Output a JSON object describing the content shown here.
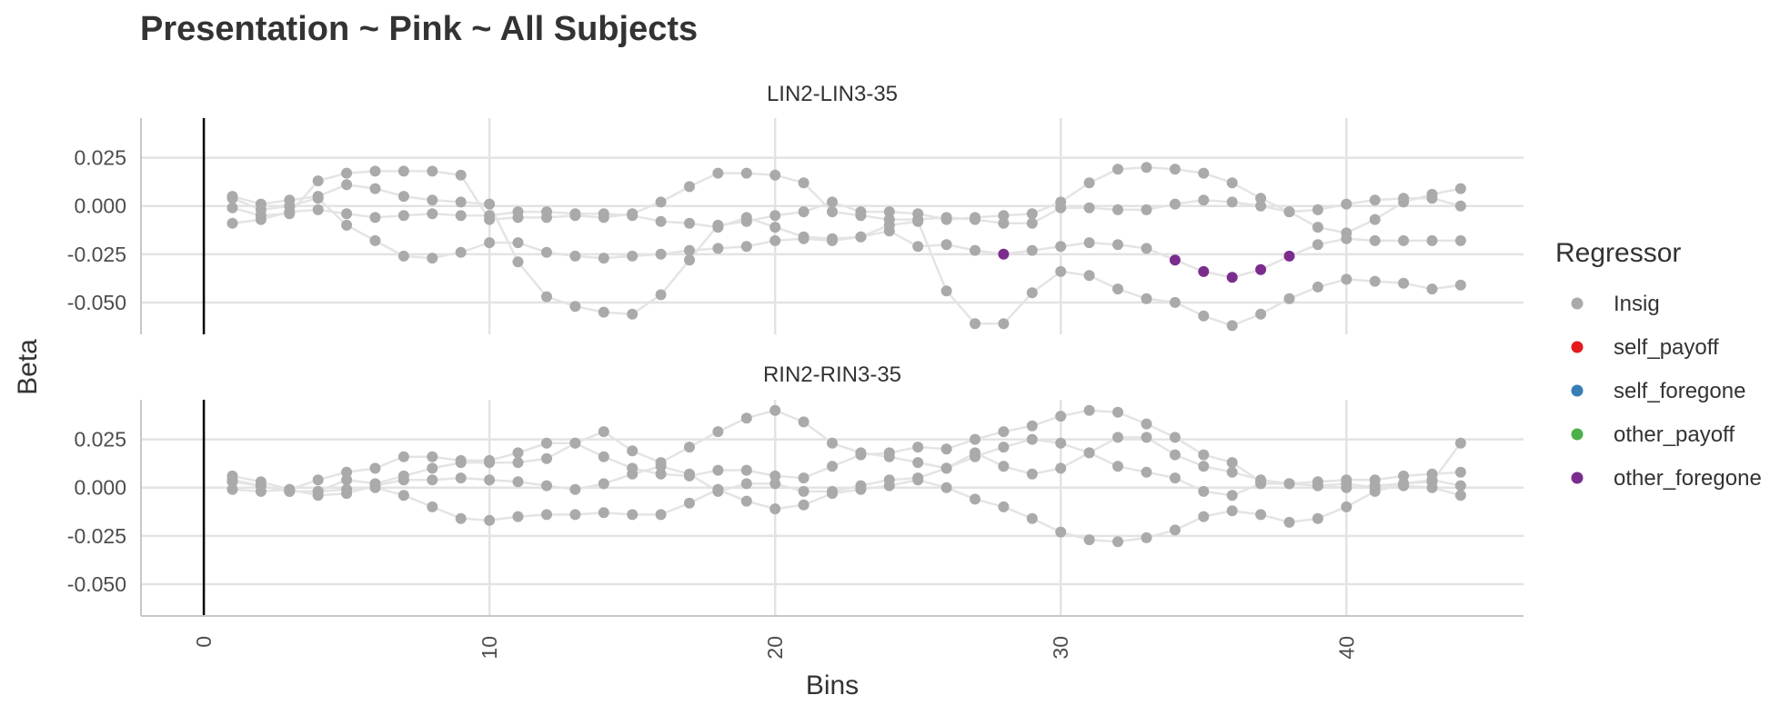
{
  "title": "Presentation ~ Pink ~ All Subjects",
  "chart_data": {
    "type": "scatter",
    "xlabel": "Bins",
    "ylabel": "Beta",
    "xlim": [
      -2.2,
      46.2
    ],
    "ylim": [
      -0.0665,
      0.0455
    ],
    "x_ticks": [
      0,
      10,
      20,
      30,
      40
    ],
    "x_tick_labels": [
      "0",
      "10",
      "20",
      "30",
      "40"
    ],
    "y_ticks": [
      0.025,
      0,
      -0.025,
      -0.05
    ],
    "y_tick_labels": [
      "0.025",
      "0.000",
      "-0.025",
      "-0.050"
    ],
    "vline_x": 0,
    "grid": true,
    "legend": {
      "title": "Regressor",
      "position": "right",
      "entries": [
        {
          "name": "Insig",
          "color": "#AAAAAA"
        },
        {
          "name": "self_payoff",
          "color": "#E41A1C"
        },
        {
          "name": "self_foregone",
          "color": "#377EB8"
        },
        {
          "name": "other_payoff",
          "color": "#4DAF4A"
        },
        {
          "name": "other_foregone",
          "color": "#7B2D8E"
        }
      ]
    },
    "panels": [
      {
        "strip": "LIN2-LIN3-35",
        "series": [
          {
            "values": [
              0.005,
              0.001,
              0.003,
              0.005,
              0.011,
              0.009,
              0.005,
              0.003,
              0.002,
              0.001,
              -0.029,
              -0.047,
              -0.052,
              -0.055,
              -0.056,
              -0.046,
              -0.028,
              -0.01,
              -0.008,
              -0.005,
              -0.003,
              0.002,
              -0.003,
              -0.003,
              -0.004,
              -0.007,
              -0.006,
              -0.005,
              -0.004,
              0.002,
              0.012,
              0.019,
              0.02,
              0.019,
              0.017,
              0.012,
              0.004,
              -0.003,
              -0.011,
              -0.014,
              -0.007,
              0.002,
              0.006,
              0.009
            ],
            "colors": {}
          },
          {
            "values": [
              -0.001,
              -0.005,
              -0.004,
              0.013,
              0.017,
              0.018,
              0.018,
              0.018,
              0.016,
              -0.007,
              -0.006,
              -0.006,
              -0.005,
              -0.006,
              -0.004,
              0.002,
              0.01,
              0.017,
              0.017,
              0.016,
              0.012,
              -0.003,
              -0.005,
              -0.007,
              -0.007,
              -0.006,
              -0.007,
              -0.009,
              -0.009,
              -0.001,
              -0.001,
              -0.002,
              -0.002,
              0.001,
              0.003,
              0.002,
              0.0,
              -0.003,
              -0.002,
              0.001,
              0.003,
              0.004,
              0.004,
              0.0
            ],
            "colors": {}
          },
          {
            "values": [
              -0.009,
              -0.007,
              -0.003,
              -0.002,
              -0.004,
              -0.006,
              -0.005,
              -0.004,
              -0.005,
              -0.005,
              -0.003,
              -0.003,
              -0.004,
              -0.004,
              -0.005,
              -0.008,
              -0.009,
              -0.011,
              -0.006,
              -0.011,
              -0.016,
              -0.017,
              -0.016,
              -0.013,
              -0.021,
              -0.02,
              -0.023,
              -0.025,
              -0.023,
              -0.021,
              -0.019,
              -0.02,
              -0.022,
              -0.028,
              -0.034,
              -0.037,
              -0.033,
              -0.026,
              -0.02,
              -0.017,
              -0.018,
              -0.018,
              -0.018,
              -0.018
            ],
            "colors": {
              "28": "#7B2D8E",
              "34": "#7B2D8E",
              "35": "#7B2D8E",
              "36": "#7B2D8E",
              "37": "#7B2D8E",
              "38": "#7B2D8E"
            }
          },
          {
            "values": [
              0.004,
              -0.002,
              0.0,
              0.004,
              -0.01,
              -0.018,
              -0.026,
              -0.027,
              -0.024,
              -0.019,
              -0.019,
              -0.024,
              -0.026,
              -0.027,
              -0.026,
              -0.025,
              -0.023,
              -0.022,
              -0.021,
              -0.018,
              -0.017,
              -0.018,
              -0.016,
              -0.01,
              -0.008,
              -0.044,
              -0.061,
              -0.061,
              -0.045,
              -0.034,
              -0.036,
              -0.043,
              -0.048,
              -0.05,
              -0.057,
              -0.062,
              -0.056,
              -0.048,
              -0.042,
              -0.038,
              -0.039,
              -0.04,
              -0.043,
              -0.041
            ],
            "colors": {}
          }
        ]
      },
      {
        "strip": "RIN2-RIN3-35",
        "series": [
          {
            "values": [
              0.006,
              0.003,
              -0.001,
              0.004,
              0.008,
              0.01,
              0.016,
              0.016,
              0.014,
              0.014,
              0.018,
              0.023,
              0.023,
              0.016,
              0.01,
              0.007,
              0.006,
              0.009,
              0.009,
              0.006,
              0.005,
              0.011,
              0.017,
              0.018,
              0.021,
              0.02,
              0.025,
              0.029,
              0.032,
              0.037,
              0.04,
              0.039,
              0.033,
              0.026,
              0.017,
              0.013,
              0.003,
              0.002,
              0.001,
              0.0,
              0.001,
              0.002,
              0.004,
              0.001
            ],
            "colors": {}
          },
          {
            "values": [
              0.004,
              0.001,
              -0.002,
              -0.002,
              0.004,
              0.002,
              0.006,
              0.01,
              0.013,
              0.013,
              0.013,
              0.015,
              0.023,
              0.029,
              0.019,
              0.013,
              0.021,
              0.029,
              0.036,
              0.04,
              0.034,
              0.023,
              0.018,
              0.016,
              0.013,
              0.01,
              0.016,
              0.021,
              0.025,
              0.023,
              0.018,
              0.026,
              0.026,
              0.017,
              0.011,
              0.008,
              0.004,
              0.002,
              0.001,
              0.002,
              0.0,
              0.001,
              0.0,
              -0.004
            ],
            "colors": {}
          },
          {
            "values": [
              -0.001,
              -0.002,
              -0.001,
              -0.004,
              -0.003,
              0.001,
              0.004,
              0.004,
              0.005,
              0.004,
              0.003,
              0.001,
              -0.001,
              0.002,
              0.007,
              0.011,
              0.007,
              -0.002,
              0.002,
              0.002,
              -0.002,
              -0.002,
              0.001,
              0.004,
              0.005,
              0.01,
              0.018,
              0.011,
              0.007,
              0.01,
              0.018,
              0.011,
              0.008,
              0.005,
              -0.002,
              -0.004,
              0.002,
              0.002,
              0.003,
              0.004,
              0.004,
              0.006,
              0.007,
              0.008
            ],
            "colors": {}
          },
          {
            "values": [
              0.003,
              0.001,
              -0.002,
              -0.002,
              -0.001,
              0.0,
              -0.004,
              -0.01,
              -0.016,
              -0.017,
              -0.015,
              -0.014,
              -0.014,
              -0.013,
              -0.014,
              -0.014,
              -0.008,
              -0.001,
              -0.007,
              -0.011,
              -0.009,
              -0.003,
              -0.001,
              0.001,
              0.004,
              0.0,
              -0.006,
              -0.01,
              -0.016,
              -0.023,
              -0.027,
              -0.028,
              -0.026,
              -0.022,
              -0.015,
              -0.012,
              -0.014,
              -0.018,
              -0.016,
              -0.01,
              -0.002,
              0.002,
              0.003,
              0.023
            ],
            "colors": {}
          }
        ]
      }
    ]
  }
}
